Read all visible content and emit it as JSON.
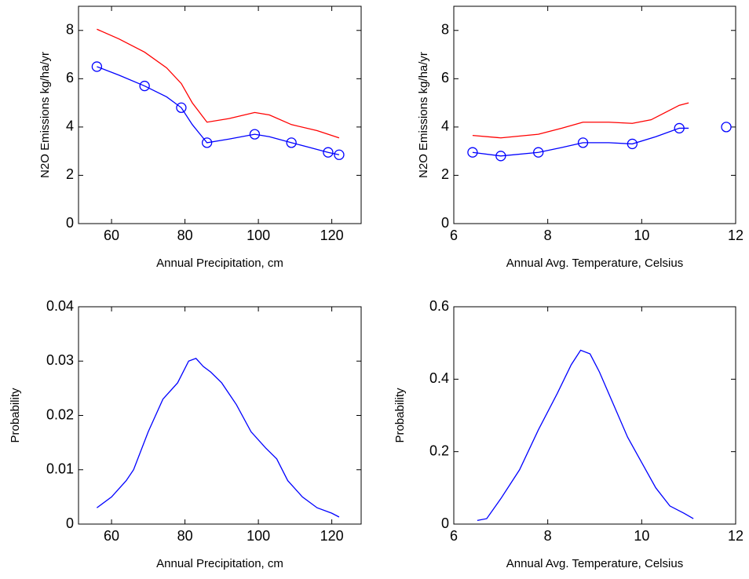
{
  "chart_data": [
    {
      "type": "line",
      "xlabel": "Annual Precipitation, cm",
      "ylabel": "N2O Emissions kg/ha/yr",
      "xlim": [
        51,
        128
      ],
      "xticks": [
        60,
        80,
        100,
        120
      ],
      "ylim": [
        0,
        9
      ],
      "yticks": [
        0,
        2,
        4,
        6,
        8
      ],
      "series": [
        {
          "color": "#ff0000",
          "x": [
            56,
            62,
            69,
            75,
            79,
            82,
            86,
            92,
            99,
            103,
            109,
            116,
            122
          ],
          "values": [
            8.05,
            7.65,
            7.1,
            6.45,
            5.8,
            5.0,
            4.2,
            4.35,
            4.6,
            4.5,
            4.1,
            3.85,
            3.55
          ]
        },
        {
          "color": "#0000ff",
          "x": [
            56,
            62,
            69,
            75,
            79,
            82,
            86,
            92,
            99,
            103,
            109,
            114,
            119,
            122
          ],
          "values": [
            6.5,
            6.15,
            5.7,
            5.25,
            4.8,
            4.1,
            3.35,
            3.5,
            3.7,
            3.6,
            3.35,
            3.15,
            2.95,
            2.85
          ]
        },
        {
          "color": "#0000ff",
          "marker": "circle",
          "line": false,
          "x": [
            56,
            69,
            79,
            86,
            99,
            109,
            119,
            122
          ],
          "values": [
            6.5,
            5.7,
            4.8,
            3.35,
            3.7,
            3.35,
            2.95,
            2.85
          ]
        }
      ]
    },
    {
      "type": "line",
      "xlabel": "Annual Avg. Temperature, Celsius",
      "ylabel": "N2O Emissions kg/ha/yr",
      "xlim": [
        6,
        12
      ],
      "xticks": [
        6,
        8,
        10,
        12
      ],
      "ylim": [
        0,
        9
      ],
      "yticks": [
        0,
        2,
        4,
        6,
        8
      ],
      "series": [
        {
          "color": "#ff0000",
          "x": [
            6.4,
            7.0,
            7.8,
            8.3,
            8.75,
            9.3,
            9.8,
            10.2,
            10.5,
            10.8,
            11.0
          ],
          "values": [
            3.65,
            3.55,
            3.7,
            3.95,
            4.2,
            4.2,
            4.15,
            4.3,
            4.6,
            4.9,
            5.0
          ]
        },
        {
          "color": "#0000ff",
          "x": [
            6.4,
            7.0,
            7.8,
            8.3,
            8.75,
            9.3,
            9.8,
            10.3,
            10.8,
            11.0
          ],
          "values": [
            2.95,
            2.8,
            2.95,
            3.15,
            3.35,
            3.35,
            3.3,
            3.6,
            3.95,
            3.95
          ]
        },
        {
          "color": "#0000ff",
          "marker": "circle",
          "line": false,
          "x": [
            6.4,
            7.0,
            7.8,
            8.75,
            9.8,
            10.8,
            11.8
          ],
          "values": [
            2.95,
            2.8,
            2.95,
            3.35,
            3.3,
            3.95,
            4.0
          ]
        }
      ]
    },
    {
      "type": "line",
      "xlabel": "Annual Precipitation, cm",
      "ylabel": "Probability",
      "xlim": [
        51,
        128
      ],
      "xticks": [
        60,
        80,
        100,
        120
      ],
      "ylim": [
        0,
        0.04
      ],
      "yticks": [
        0,
        0.01,
        0.02,
        0.03,
        0.04
      ],
      "series": [
        {
          "color": "#0000ff",
          "x": [
            56,
            60,
            64,
            66,
            70,
            74,
            78,
            81,
            83,
            85,
            87,
            90,
            94,
            98,
            102,
            105,
            108,
            112,
            116,
            120,
            122
          ],
          "values": [
            0.003,
            0.005,
            0.008,
            0.01,
            0.017,
            0.023,
            0.026,
            0.03,
            0.0305,
            0.029,
            0.028,
            0.026,
            0.022,
            0.017,
            0.014,
            0.012,
            0.008,
            0.005,
            0.003,
            0.002,
            0.0013
          ]
        }
      ]
    },
    {
      "type": "line",
      "xlabel": "Annual Avg. Temperature, Celsius",
      "ylabel": "Probability",
      "xlim": [
        6,
        12
      ],
      "xticks": [
        6,
        8,
        10,
        12
      ],
      "ylim": [
        0,
        0.6
      ],
      "yticks": [
        0,
        0.2,
        0.4,
        0.6
      ],
      "series": [
        {
          "color": "#0000ff",
          "x": [
            6.5,
            6.7,
            7.0,
            7.4,
            7.8,
            8.2,
            8.5,
            8.7,
            8.9,
            9.1,
            9.4,
            9.7,
            10.0,
            10.3,
            10.6,
            10.9,
            11.1
          ],
          "values": [
            0.01,
            0.015,
            0.07,
            0.15,
            0.26,
            0.36,
            0.44,
            0.48,
            0.47,
            0.42,
            0.33,
            0.24,
            0.17,
            0.1,
            0.05,
            0.03,
            0.015
          ]
        }
      ]
    }
  ]
}
